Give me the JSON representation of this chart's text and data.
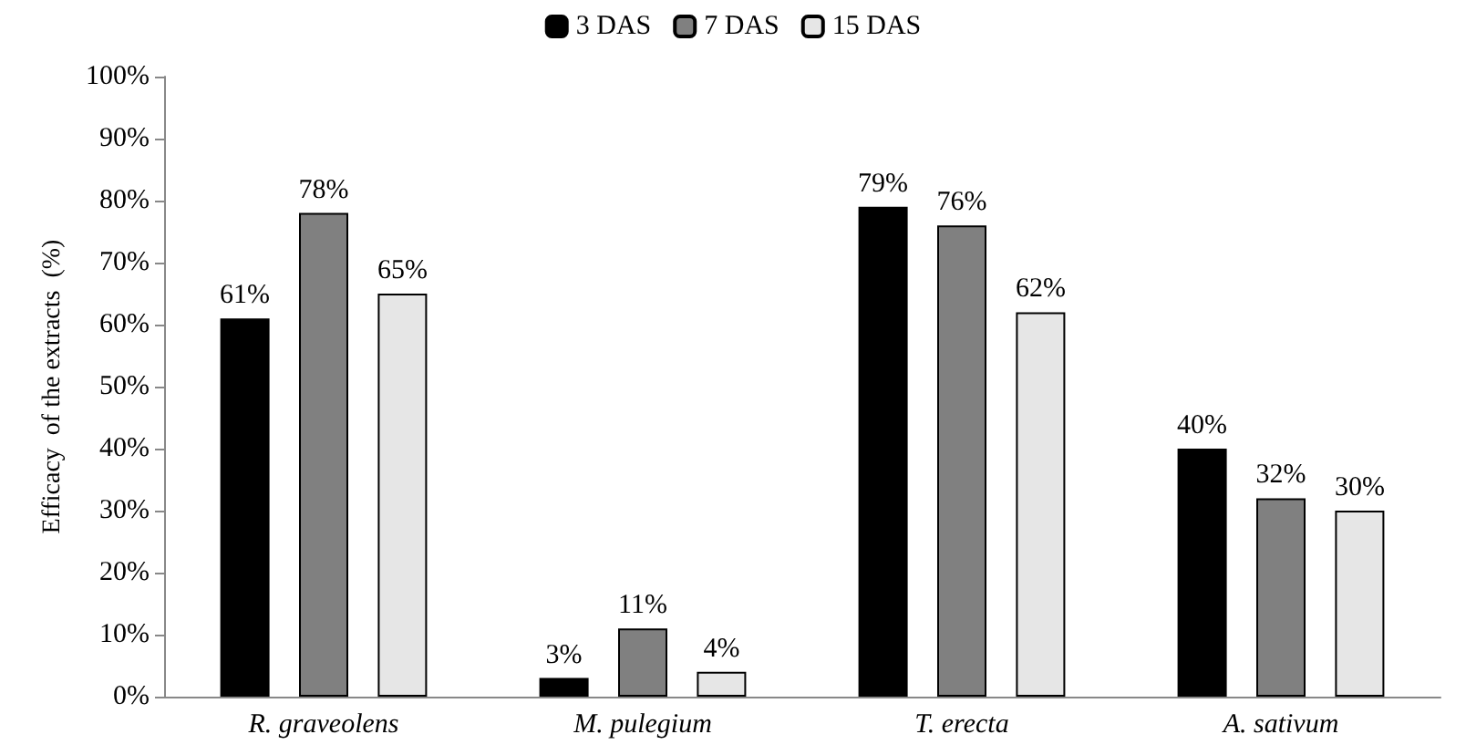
{
  "chart_data": {
    "type": "bar",
    "ylabel": "Efficacy  of the extracts  (%)",
    "categories": [
      "R. graveolens",
      "M. pulegium",
      "T. erecta",
      "A. sativum"
    ],
    "series": [
      {
        "name": "3 DAS",
        "color": "#000000",
        "values": [
          61,
          3,
          79,
          40
        ],
        "value_labels": [
          "61%",
          "3%",
          "79%",
          "40%"
        ]
      },
      {
        "name": "7 DAS",
        "color": "#808080",
        "values": [
          78,
          11,
          76,
          32
        ],
        "value_labels": [
          "78%",
          "11%",
          "76%",
          "32%"
        ]
      },
      {
        "name": "15 DAS",
        "color": "#e6e6e6",
        "values": [
          65,
          4,
          62,
          30
        ],
        "value_labels": [
          "65%",
          "4%",
          "62%",
          "30%"
        ]
      }
    ],
    "ylim": [
      0,
      100
    ],
    "yticks": [
      {
        "value": 0,
        "label": "0%"
      },
      {
        "value": 10,
        "label": "10%"
      },
      {
        "value": 20,
        "label": "20%"
      },
      {
        "value": 30,
        "label": "30%"
      },
      {
        "value": 40,
        "label": "40%"
      },
      {
        "value": 50,
        "label": "50%"
      },
      {
        "value": 60,
        "label": "60%"
      },
      {
        "value": 70,
        "label": "70%"
      },
      {
        "value": 80,
        "label": "80%"
      },
      {
        "value": 90,
        "label": "90%"
      },
      {
        "value": 100,
        "label": "100%"
      }
    ],
    "grid": false,
    "legend": "top"
  }
}
